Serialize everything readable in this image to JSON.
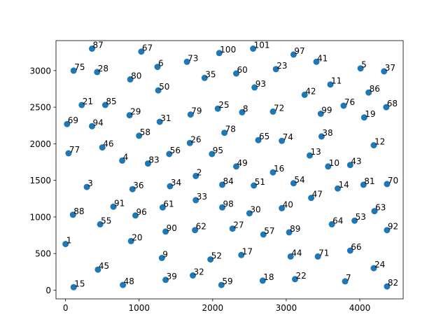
{
  "chart_data": {
    "type": "scatter",
    "title": "",
    "xlabel": "",
    "ylabel": "",
    "xlim": [
      -130,
      4590
    ],
    "ylim": [
      -120,
      3410
    ],
    "grid": false,
    "legend": "none",
    "marker_color": "#1f77b4",
    "x_ticks": [
      0,
      1000,
      2000,
      3000,
      4000
    ],
    "y_ticks": [
      0,
      500,
      1000,
      1500,
      2000,
      2500,
      3000
    ],
    "x_tick_labels": [
      "0",
      "1000",
      "2000",
      "3000",
      "4000"
    ],
    "y_tick_labels": [
      "0",
      "500",
      "1000",
      "1500",
      "2000",
      "2500",
      "3000"
    ],
    "points": [
      {
        "label": "87",
        "x": 360,
        "y": 3300
      },
      {
        "label": "67",
        "x": 1030,
        "y": 3260
      },
      {
        "label": "73",
        "x": 1650,
        "y": 3120
      },
      {
        "label": "100",
        "x": 2090,
        "y": 3240
      },
      {
        "label": "101",
        "x": 2550,
        "y": 3300
      },
      {
        "label": "97",
        "x": 3100,
        "y": 3220
      },
      {
        "label": "41",
        "x": 3410,
        "y": 3120
      },
      {
        "label": "5",
        "x": 4010,
        "y": 3030
      },
      {
        "label": "37",
        "x": 4330,
        "y": 2990
      },
      {
        "label": "75",
        "x": 110,
        "y": 3000
      },
      {
        "label": "28",
        "x": 430,
        "y": 2980
      },
      {
        "label": "80",
        "x": 880,
        "y": 2880
      },
      {
        "label": "6",
        "x": 1250,
        "y": 3050
      },
      {
        "label": "35",
        "x": 1890,
        "y": 2900
      },
      {
        "label": "60",
        "x": 2320,
        "y": 2960
      },
      {
        "label": "23",
        "x": 2860,
        "y": 3020
      },
      {
        "label": "50",
        "x": 1260,
        "y": 2730
      },
      {
        "label": "93",
        "x": 2570,
        "y": 2770
      },
      {
        "label": "11",
        "x": 3600,
        "y": 2810
      },
      {
        "label": "86",
        "x": 4120,
        "y": 2700
      },
      {
        "label": "42",
        "x": 3250,
        "y": 2670
      },
      {
        "label": "21",
        "x": 220,
        "y": 2530
      },
      {
        "label": "85",
        "x": 540,
        "y": 2530
      },
      {
        "label": "29",
        "x": 870,
        "y": 2390
      },
      {
        "label": "79",
        "x": 1700,
        "y": 2400
      },
      {
        "label": "25",
        "x": 2070,
        "y": 2480
      },
      {
        "label": "8",
        "x": 2400,
        "y": 2430
      },
      {
        "label": "72",
        "x": 2820,
        "y": 2440
      },
      {
        "label": "99",
        "x": 3470,
        "y": 2410
      },
      {
        "label": "76",
        "x": 3780,
        "y": 2520
      },
      {
        "label": "19",
        "x": 4060,
        "y": 2360
      },
      {
        "label": "68",
        "x": 4360,
        "y": 2500
      },
      {
        "label": "69",
        "x": 20,
        "y": 2270
      },
      {
        "label": "94",
        "x": 360,
        "y": 2240
      },
      {
        "label": "31",
        "x": 1280,
        "y": 2300
      },
      {
        "label": "58",
        "x": 1000,
        "y": 2110
      },
      {
        "label": "78",
        "x": 2160,
        "y": 2150
      },
      {
        "label": "65",
        "x": 2620,
        "y": 2050
      },
      {
        "label": "74",
        "x": 2940,
        "y": 2040
      },
      {
        "label": "38",
        "x": 3480,
        "y": 2100
      },
      {
        "label": "12",
        "x": 4190,
        "y": 1980
      },
      {
        "label": "77",
        "x": 40,
        "y": 1870
      },
      {
        "label": "46",
        "x": 500,
        "y": 1950
      },
      {
        "label": "26",
        "x": 1690,
        "y": 2010
      },
      {
        "label": "56",
        "x": 1410,
        "y": 1860
      },
      {
        "label": "95",
        "x": 1990,
        "y": 1860
      },
      {
        "label": "13",
        "x": 3320,
        "y": 1840
      },
      {
        "label": "4",
        "x": 770,
        "y": 1770
      },
      {
        "label": "83",
        "x": 1120,
        "y": 1730
      },
      {
        "label": "49",
        "x": 2320,
        "y": 1690
      },
      {
        "label": "10",
        "x": 3570,
        "y": 1690
      },
      {
        "label": "43",
        "x": 3870,
        "y": 1710
      },
      {
        "label": "2",
        "x": 1770,
        "y": 1560
      },
      {
        "label": "16",
        "x": 2820,
        "y": 1610
      },
      {
        "label": "3",
        "x": 290,
        "y": 1410
      },
      {
        "label": "36",
        "x": 910,
        "y": 1380
      },
      {
        "label": "34",
        "x": 1420,
        "y": 1420
      },
      {
        "label": "84",
        "x": 2130,
        "y": 1440
      },
      {
        "label": "51",
        "x": 2560,
        "y": 1430
      },
      {
        "label": "54",
        "x": 3100,
        "y": 1460
      },
      {
        "label": "14",
        "x": 3700,
        "y": 1390
      },
      {
        "label": "81",
        "x": 4050,
        "y": 1440
      },
      {
        "label": "70",
        "x": 4370,
        "y": 1450
      },
      {
        "label": "47",
        "x": 3340,
        "y": 1260
      },
      {
        "label": "33",
        "x": 1770,
        "y": 1230
      },
      {
        "label": "91",
        "x": 650,
        "y": 1140
      },
      {
        "label": "61",
        "x": 1320,
        "y": 1130
      },
      {
        "label": "98",
        "x": 2130,
        "y": 1130
      },
      {
        "label": "40",
        "x": 2940,
        "y": 1120
      },
      {
        "label": "88",
        "x": 100,
        "y": 1030
      },
      {
        "label": "96",
        "x": 950,
        "y": 1020
      },
      {
        "label": "30",
        "x": 2500,
        "y": 1050
      },
      {
        "label": "63",
        "x": 4200,
        "y": 1080
      },
      {
        "label": "55",
        "x": 470,
        "y": 900
      },
      {
        "label": "53",
        "x": 3930,
        "y": 950
      },
      {
        "label": "64",
        "x": 3620,
        "y": 900
      },
      {
        "label": "90",
        "x": 1360,
        "y": 800
      },
      {
        "label": "62",
        "x": 1760,
        "y": 820
      },
      {
        "label": "27",
        "x": 2270,
        "y": 840
      },
      {
        "label": "57",
        "x": 2690,
        "y": 760
      },
      {
        "label": "89",
        "x": 3040,
        "y": 790
      },
      {
        "label": "92",
        "x": 4370,
        "y": 820
      },
      {
        "label": "1",
        "x": 0,
        "y": 630
      },
      {
        "label": "20",
        "x": 890,
        "y": 670
      },
      {
        "label": "66",
        "x": 3870,
        "y": 540
      },
      {
        "label": "9",
        "x": 1310,
        "y": 440
      },
      {
        "label": "52",
        "x": 1970,
        "y": 420
      },
      {
        "label": "17",
        "x": 2390,
        "y": 480
      },
      {
        "label": "44",
        "x": 3060,
        "y": 460
      },
      {
        "label": "71",
        "x": 3430,
        "y": 460
      },
      {
        "label": "45",
        "x": 440,
        "y": 280
      },
      {
        "label": "24",
        "x": 4190,
        "y": 300
      },
      {
        "label": "32",
        "x": 1730,
        "y": 200
      },
      {
        "label": "39",
        "x": 1360,
        "y": 140
      },
      {
        "label": "18",
        "x": 2680,
        "y": 130
      },
      {
        "label": "22",
        "x": 3120,
        "y": 150
      },
      {
        "label": "7",
        "x": 3800,
        "y": 120
      },
      {
        "label": "15",
        "x": 110,
        "y": 40
      },
      {
        "label": "48",
        "x": 780,
        "y": 70
      },
      {
        "label": "59",
        "x": 2120,
        "y": 70
      },
      {
        "label": "82",
        "x": 4370,
        "y": 50
      }
    ]
  }
}
